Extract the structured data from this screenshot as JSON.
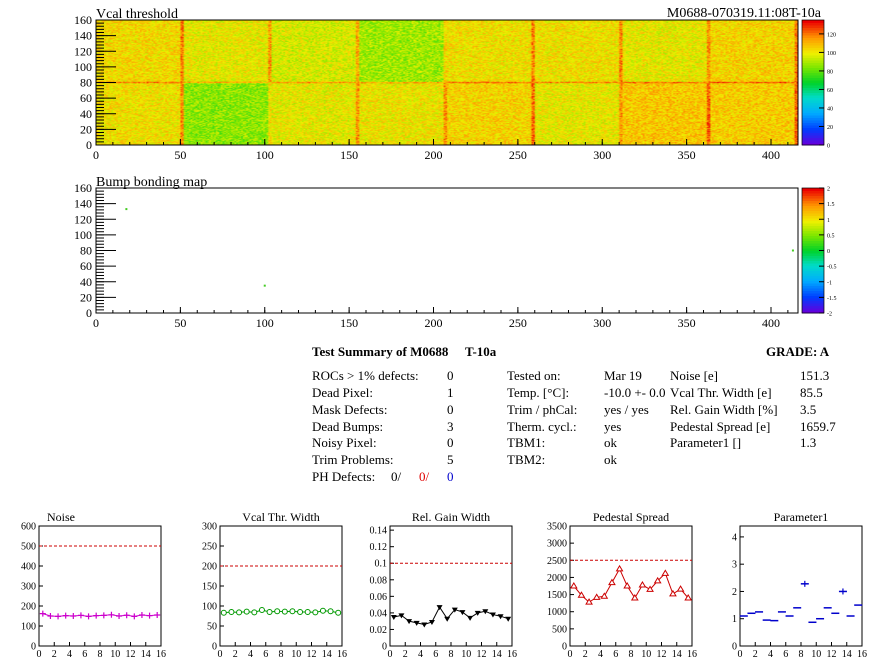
{
  "module_id": "M0688-070319.11:08T-10a",
  "colors": {
    "dashed_ref": "#cc0000",
    "noise": "#cc00cc",
    "vcal": "#009900",
    "gain": "#000000",
    "pedestal": "#cc0000",
    "param1": "#0000cc"
  },
  "maps": [
    {
      "title": "Vcal threshold",
      "x_ticks": [
        "0",
        "50",
        "100",
        "150",
        "200",
        "250",
        "300",
        "350",
        "400"
      ],
      "y_ticks": [
        "0",
        "20",
        "40",
        "60",
        "80",
        "100",
        "120",
        "140",
        "160"
      ],
      "palette_ticks": [
        "0",
        "20",
        "40",
        "60",
        "80",
        "100",
        "120"
      ],
      "xlim": [
        0,
        416
      ],
      "ylim": [
        0,
        160
      ],
      "zlim": [
        0,
        135
      ]
    },
    {
      "title": "Bump bonding map",
      "x_ticks": [
        "0",
        "50",
        "100",
        "150",
        "200",
        "250",
        "300",
        "350",
        "400"
      ],
      "y_ticks": [
        "0",
        "20",
        "40",
        "60",
        "80",
        "100",
        "120",
        "140",
        "160"
      ],
      "palette_ticks": [
        "-2",
        "-1.5",
        "-1",
        "-0.5",
        "0",
        "0.5",
        "1",
        "1.5",
        "2"
      ],
      "xlim": [
        0,
        416
      ],
      "ylim": [
        0,
        160
      ],
      "zlim": [
        -2,
        2
      ],
      "points": [
        {
          "x": 18,
          "y": 133
        },
        {
          "x": 100,
          "y": 35
        },
        {
          "x": 413,
          "y": 80
        }
      ]
    }
  ],
  "summary": {
    "title": "Test Summary of M0688",
    "temp_label": "T-10a",
    "grade_label": "GRADE:  A",
    "left_rows": [
      {
        "label": "ROCs > 1% defects:",
        "value": "0"
      },
      {
        "label": "Dead Pixel:",
        "value": "1"
      },
      {
        "label": "Mask Defects:",
        "value": "0"
      },
      {
        "label": "Dead Bumps:",
        "value": "3"
      },
      {
        "label": "Noisy Pixel:",
        "value": "0"
      },
      {
        "label": "Trim Problems:",
        "value": "5"
      }
    ],
    "ph_label": "PH Defects:",
    "ph_values": [
      "0/",
      "0/",
      "0"
    ],
    "middle_rows": [
      {
        "label": "Tested on:",
        "value": "Mar 19"
      },
      {
        "label": "Temp. [°C]:",
        "value": "-10.0 +- 0.0"
      },
      {
        "label": "Trim / phCal:",
        "value": "yes / yes"
      },
      {
        "label": "Therm. cycl.:",
        "value": "yes"
      },
      {
        "label": "TBM1:",
        "value": "ok"
      },
      {
        "label": "TBM2:",
        "value": "ok"
      }
    ],
    "right_rows": [
      {
        "label": "Noise [e]",
        "value": "151.3"
      },
      {
        "label": "Vcal Thr. Width [e]",
        "value": "85.5"
      },
      {
        "label": "Rel. Gain Width [%]",
        "value": "3.5"
      },
      {
        "label": "Pedestal Spread [e]",
        "value": "1659.7"
      },
      {
        "label": "Parameter1 []",
        "value": "1.3"
      }
    ]
  },
  "chart_data": [
    {
      "type": "line",
      "title": "Noise",
      "marker": "cross",
      "x": [
        0,
        1,
        2,
        3,
        4,
        5,
        6,
        7,
        8,
        9,
        10,
        11,
        12,
        13,
        14,
        15
      ],
      "values": [
        162,
        150,
        148,
        152,
        150,
        153,
        148,
        152,
        153,
        156,
        150,
        154,
        148,
        155,
        152,
        155
      ],
      "xlim": [
        0,
        16
      ],
      "ylim": [
        0,
        600
      ],
      "ref_line": 500,
      "x_ticks": [
        "0",
        "2",
        "4",
        "6",
        "8",
        "10",
        "12",
        "14",
        "16"
      ],
      "y_ticks": [
        "0",
        "100",
        "200",
        "300",
        "400",
        "500",
        "600"
      ]
    },
    {
      "type": "line",
      "title": "Vcal Thr. Width",
      "marker": "circle",
      "x": [
        0,
        1,
        2,
        3,
        4,
        5,
        6,
        7,
        8,
        9,
        10,
        11,
        12,
        13,
        14,
        15
      ],
      "values": [
        83,
        85,
        84,
        86,
        84,
        90,
        85,
        87,
        86,
        87,
        85,
        85,
        84,
        88,
        87,
        83
      ],
      "xlim": [
        0,
        16
      ],
      "ylim": [
        0,
        300
      ],
      "ref_line": 200,
      "x_ticks": [
        "0",
        "2",
        "4",
        "6",
        "8",
        "10",
        "12",
        "14",
        "16"
      ],
      "y_ticks": [
        "0",
        "50",
        "100",
        "150",
        "200",
        "250",
        "300"
      ]
    },
    {
      "type": "line",
      "title": "Rel. Gain Width",
      "marker": "triangle-down",
      "x": [
        0,
        1,
        2,
        3,
        4,
        5,
        6,
        7,
        8,
        9,
        10,
        11,
        12,
        13,
        14,
        15
      ],
      "values": [
        0.035,
        0.037,
        0.03,
        0.028,
        0.026,
        0.029,
        0.047,
        0.033,
        0.044,
        0.041,
        0.034,
        0.04,
        0.042,
        0.038,
        0.036,
        0.033
      ],
      "xlim": [
        0,
        16
      ],
      "ylim": [
        0,
        0.145
      ],
      "ref_line": 0.1,
      "x_ticks": [
        "0",
        "2",
        "4",
        "6",
        "8",
        "10",
        "12",
        "14",
        "16"
      ],
      "y_ticks": [
        "0",
        "0.02",
        "0.04",
        "0.06",
        "0.08",
        "0.1",
        "0.12",
        "0.14"
      ]
    },
    {
      "type": "line",
      "title": "Pedestal Spread",
      "marker": "triangle-up",
      "x": [
        0,
        1,
        2,
        3,
        4,
        5,
        6,
        7,
        8,
        9,
        10,
        11,
        12,
        13,
        14,
        15
      ],
      "values": [
        1750,
        1480,
        1280,
        1420,
        1450,
        1850,
        2250,
        1750,
        1400,
        1780,
        1650,
        1900,
        2120,
        1520,
        1660,
        1400
      ],
      "xlim": [
        0,
        16
      ],
      "ylim": [
        0,
        3500
      ],
      "ref_line": 2500,
      "x_ticks": [
        "0",
        "2",
        "4",
        "6",
        "8",
        "10",
        "12",
        "14",
        "16"
      ],
      "y_ticks": [
        "0",
        "500",
        "1000",
        "1500",
        "2000",
        "2500",
        "3000",
        "3500"
      ]
    },
    {
      "type": "scatter",
      "title": "Parameter1",
      "marker": "hbar",
      "x": [
        0,
        1,
        2,
        3,
        4,
        5,
        6,
        7,
        8,
        9,
        10,
        11,
        12,
        13,
        14,
        15
      ],
      "values": [
        1.1,
        1.2,
        1.25,
        0.95,
        0.93,
        1.25,
        1.1,
        1.4,
        2.28,
        0.87,
        1.0,
        1.4,
        1.2,
        2.0,
        1.1,
        1.5
      ],
      "xlim": [
        0,
        16
      ],
      "ylim": [
        0,
        4.4
      ],
      "x_ticks": [
        "0",
        "2",
        "4",
        "6",
        "8",
        "10",
        "12",
        "14",
        "16"
      ],
      "y_ticks": [
        "0",
        "1",
        "2",
        "3",
        "4"
      ]
    }
  ]
}
